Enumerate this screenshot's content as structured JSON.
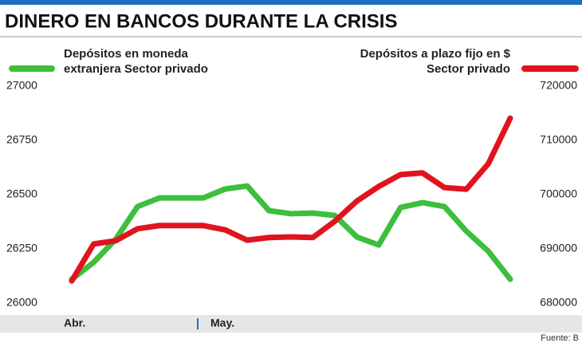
{
  "chart_data": {
    "type": "line",
    "title": "DINERO EN BANCOS DURANTE LA CRISIS",
    "source": "Fuente: B",
    "categories": [
      "Abr.",
      null,
      null,
      null,
      null,
      null,
      null,
      "May.",
      null,
      null,
      null,
      null,
      null,
      null,
      null,
      null,
      null,
      null,
      null,
      null,
      null
    ],
    "series": [
      {
        "name": "Depósitos en moneda extranjera Sector privado",
        "color": "#3dbf3d",
        "axis": "y",
        "values": [
          26110,
          26188,
          26294,
          26445,
          26485,
          26485,
          26485,
          26526,
          26540,
          26426,
          26412,
          26415,
          26404,
          26305,
          26268,
          26441,
          26463,
          26445,
          26331,
          26239,
          26110
        ]
      },
      {
        "name": "Depósitos a plazo fijo en $ Sector privado",
        "color": "#e0141e",
        "axis": "y2",
        "values": [
          684100,
          690900,
          691500,
          693700,
          694300,
          694300,
          694300,
          693500,
          691600,
          692100,
          692200,
          692100,
          695100,
          698800,
          701500,
          703700,
          704000,
          701300,
          701000,
          705700,
          714100
        ]
      }
    ],
    "ylim": [
      26000,
      27000
    ],
    "yticks": [
      26000,
      26250,
      26500,
      26750,
      27000
    ],
    "y2lim": [
      680000,
      720000
    ],
    "y2ticks": [
      680000,
      690000,
      700000,
      710000,
      720000
    ],
    "grid": false
  }
}
